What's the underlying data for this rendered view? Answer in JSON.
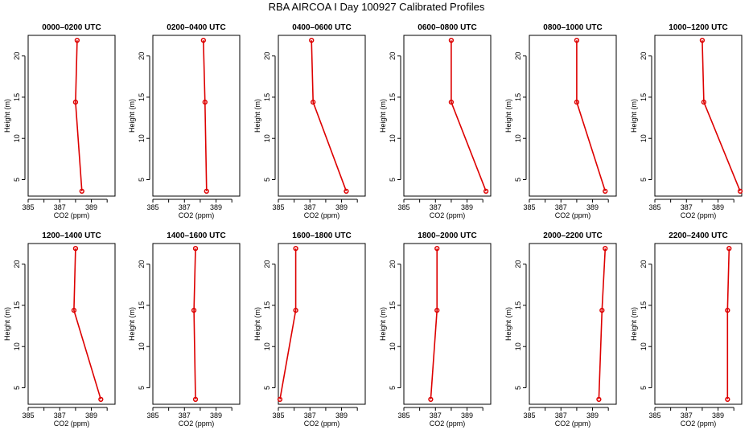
{
  "title": "RBA AIRCOA I  Day 100927  Calibrated Profiles",
  "chart_data": {
    "type": "line",
    "xlabel": "CO2 (ppm)",
    "ylabel": "Height (m)",
    "xlim": [
      385,
      390.5
    ],
    "ylim": [
      3,
      22.5
    ],
    "xticks": [
      385,
      386,
      387,
      388,
      389,
      390
    ],
    "xtick_labels": [
      "385",
      "",
      "387",
      "",
      "389",
      ""
    ],
    "yticks": [
      5,
      10,
      15,
      20
    ],
    "ytick_labels": [
      "5",
      "10",
      "15",
      "20"
    ],
    "line_color": "#dd0000",
    "marker": "open circle",
    "heights": [
      3.6,
      14.4,
      21.9
    ],
    "panels": [
      {
        "title": "0000–0200 UTC",
        "co2": [
          388.4,
          388.0,
          388.1
        ]
      },
      {
        "title": "0200–0400 UTC",
        "co2": [
          388.4,
          388.3,
          388.2
        ]
      },
      {
        "title": "0400–0600 UTC",
        "co2": [
          389.3,
          387.2,
          387.1
        ]
      },
      {
        "title": "0600–0800 UTC",
        "co2": [
          390.2,
          388.0,
          388.0
        ]
      },
      {
        "title": "0800–1000 UTC",
        "co2": [
          389.8,
          388.0,
          388.0
        ]
      },
      {
        "title": "1000–1200 UTC",
        "co2": [
          390.4,
          388.1,
          388.0
        ]
      },
      {
        "title": "1200–1400 UTC",
        "co2": [
          389.6,
          387.9,
          388.0
        ]
      },
      {
        "title": "1400–1600 UTC",
        "co2": [
          387.7,
          387.6,
          387.7
        ]
      },
      {
        "title": "1600–1800 UTC",
        "co2": [
          385.1,
          386.1,
          386.1
        ]
      },
      {
        "title": "1800–2000 UTC",
        "co2": [
          386.7,
          387.1,
          387.1
        ]
      },
      {
        "title": "2000–2200 UTC",
        "co2": [
          389.4,
          389.6,
          389.8
        ]
      },
      {
        "title": "2200–2400 UTC",
        "co2": [
          389.6,
          389.6,
          389.7
        ]
      }
    ]
  }
}
